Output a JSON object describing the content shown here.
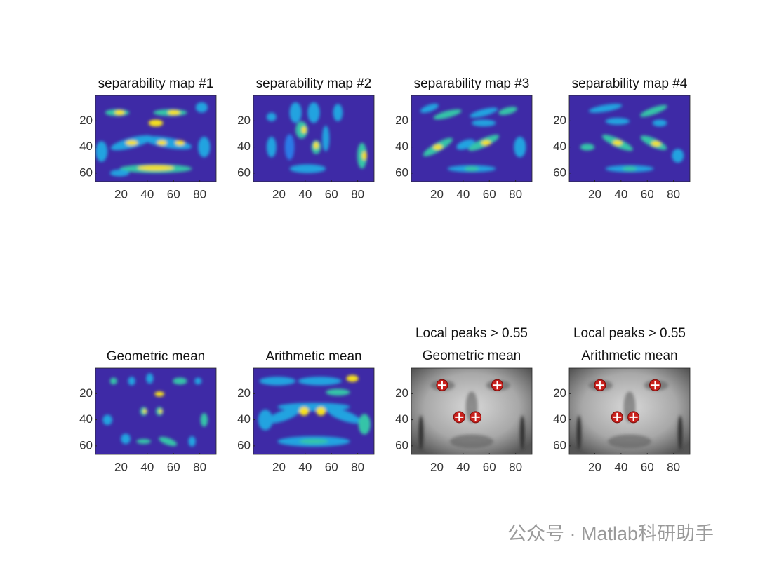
{
  "chart_data": [
    {
      "type": "heatmap",
      "title": "separability map #1",
      "xlim": [
        0.5,
        92.5
      ],
      "ylim": [
        0.5,
        66.5
      ],
      "xticks": [
        20,
        40,
        60,
        80
      ],
      "yticks": [
        20,
        40,
        60
      ]
    },
    {
      "type": "heatmap",
      "title": "separability map #2",
      "xlim": [
        0.5,
        92.5
      ],
      "ylim": [
        0.5,
        66.5
      ],
      "xticks": [
        20,
        40,
        60,
        80
      ],
      "yticks": [
        20,
        40,
        60
      ]
    },
    {
      "type": "heatmap",
      "title": "separability map #3",
      "xlim": [
        0.5,
        92.5
      ],
      "ylim": [
        0.5,
        66.5
      ],
      "xticks": [
        20,
        40,
        60,
        80
      ],
      "yticks": [
        20,
        40,
        60
      ]
    },
    {
      "type": "heatmap",
      "title": "separability map #4",
      "xlim": [
        0.5,
        92.5
      ],
      "ylim": [
        0.5,
        66.5
      ],
      "xticks": [
        20,
        40,
        60,
        80
      ],
      "yticks": [
        20,
        40,
        60
      ]
    },
    {
      "type": "heatmap",
      "title": "Geometric mean",
      "xlim": [
        0.5,
        92.5
      ],
      "ylim": [
        0.5,
        66.5
      ],
      "xticks": [
        20,
        40,
        60,
        80
      ],
      "yticks": [
        20,
        40,
        60
      ]
    },
    {
      "type": "heatmap",
      "title": "Arithmetic mean",
      "xlim": [
        0.5,
        92.5
      ],
      "ylim": [
        0.5,
        66.5
      ],
      "xticks": [
        20,
        40,
        60,
        80
      ],
      "yticks": [
        20,
        40,
        60
      ]
    },
    {
      "type": "image",
      "title": [
        "Local peaks > 0.55",
        "Geometric mean"
      ],
      "xlim": [
        0.5,
        92.5
      ],
      "ylim": [
        0.5,
        66.5
      ],
      "xticks": [
        20,
        40,
        60,
        80
      ],
      "yticks": [
        20,
        40,
        60
      ],
      "x": [
        24,
        66,
        37,
        49.5
      ],
      "values": [
        13.5,
        13.5,
        38,
        38
      ],
      "color": "#c8201c"
    },
    {
      "type": "image",
      "title": [
        "Local peaks > 0.55",
        "Arithmetic mean"
      ],
      "xlim": [
        0.5,
        92.5
      ],
      "ylim": [
        0.5,
        66.5
      ],
      "xticks": [
        20,
        40,
        60,
        80
      ],
      "yticks": [
        20,
        40,
        60
      ],
      "x": [
        24,
        66,
        37,
        49.5
      ],
      "values": [
        13.5,
        13.5,
        38,
        38
      ],
      "color": "#c8201c"
    }
  ],
  "watermark": "公众号 · Matlab科研助手"
}
